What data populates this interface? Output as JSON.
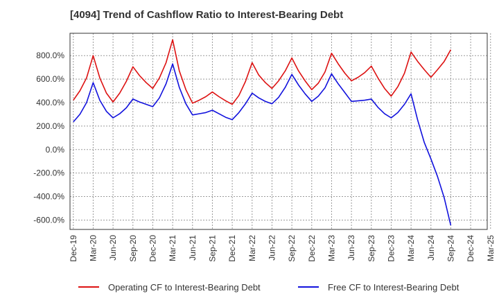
{
  "chart_data": {
    "type": "line",
    "title": "[4094]  Trend of Cashflow Ratio to Interest-Bearing Debt",
    "xlabel": "",
    "ylabel": "",
    "ylim": [
      -680,
      990
    ],
    "yticks": [
      800,
      600,
      400,
      200,
      0,
      -200,
      -400,
      -600
    ],
    "ytick_labels": [
      "800.0%",
      "600.0%",
      "400.0%",
      "200.0%",
      "0.0%",
      "-200.0%",
      "-400.0%",
      "-600.0%"
    ],
    "x_start": "2019-12",
    "xticks": [
      "Dec-19",
      "Mar-20",
      "Jun-20",
      "Sep-20",
      "Dec-20",
      "Mar-21",
      "Jun-21",
      "Sep-21",
      "Dec-21",
      "Mar-22",
      "Jun-22",
      "Sep-22",
      "Dec-22",
      "Mar-23",
      "Jun-23",
      "Sep-23",
      "Dec-23",
      "Mar-24",
      "Jun-24",
      "Sep-24",
      "Dec-24",
      "Mar-25"
    ],
    "grid": true,
    "legend_position": "bottom",
    "series": [
      {
        "name": "Operating CF to Interest-Bearing Debt",
        "color": "#dd1111",
        "values": [
          420,
          500,
          610,
          800,
          610,
          480,
          405,
          480,
          580,
          705,
          630,
          570,
          520,
          610,
          740,
          935,
          670,
          510,
          395,
          420,
          450,
          490,
          450,
          415,
          385,
          460,
          580,
          740,
          635,
          570,
          520,
          585,
          670,
          780,
          670,
          585,
          510,
          565,
          660,
          820,
          730,
          650,
          585,
          615,
          655,
          710,
          610,
          520,
          455,
          535,
          650,
          830,
          750,
          680,
          615,
          680,
          750,
          850
        ]
      },
      {
        "name": "Free CF to Interest-Bearing Debt",
        "color": "#1111dd",
        "values": [
          235,
          300,
          400,
          570,
          420,
          325,
          270,
          305,
          355,
          430,
          405,
          385,
          365,
          440,
          560,
          730,
          530,
          390,
          295,
          305,
          315,
          335,
          305,
          275,
          255,
          315,
          390,
          480,
          440,
          410,
          390,
          445,
          530,
          640,
          550,
          475,
          410,
          455,
          525,
          645,
          560,
          485,
          410,
          415,
          420,
          430,
          360,
          305,
          270,
          315,
          385,
          475,
          250,
          60,
          -80,
          -230,
          -410,
          -645
        ]
      }
    ]
  }
}
